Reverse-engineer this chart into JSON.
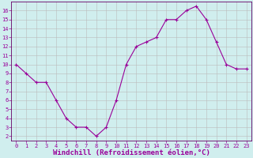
{
  "x": [
    0,
    1,
    2,
    3,
    4,
    5,
    6,
    7,
    8,
    9,
    10,
    11,
    12,
    13,
    14,
    15,
    16,
    17,
    18,
    19,
    20,
    21,
    22,
    23
  ],
  "y": [
    10,
    9,
    8,
    8,
    6,
    4,
    3,
    3,
    2,
    3,
    6,
    10,
    12,
    12.5,
    13,
    15,
    15,
    16,
    16.5,
    15,
    12.5,
    10,
    9.5,
    9.5
  ],
  "line_color": "#990099",
  "marker": "+",
  "bg_color": "#d0eeee",
  "grid_color": "#bbbbbb",
  "xlabel": "Windchill (Refroidissement éolien,°C)",
  "ylim": [
    1.5,
    17
  ],
  "xlim": [
    -0.5,
    23.5
  ],
  "yticks": [
    2,
    3,
    4,
    5,
    6,
    7,
    8,
    9,
    10,
    11,
    12,
    13,
    14,
    15,
    16
  ],
  "xticks": [
    0,
    1,
    2,
    3,
    4,
    5,
    6,
    7,
    8,
    9,
    10,
    11,
    12,
    13,
    14,
    15,
    16,
    17,
    18,
    19,
    20,
    21,
    22,
    23
  ],
  "tick_fontsize": 5.0,
  "xlabel_fontsize": 6.5,
  "spine_color": "#660066"
}
